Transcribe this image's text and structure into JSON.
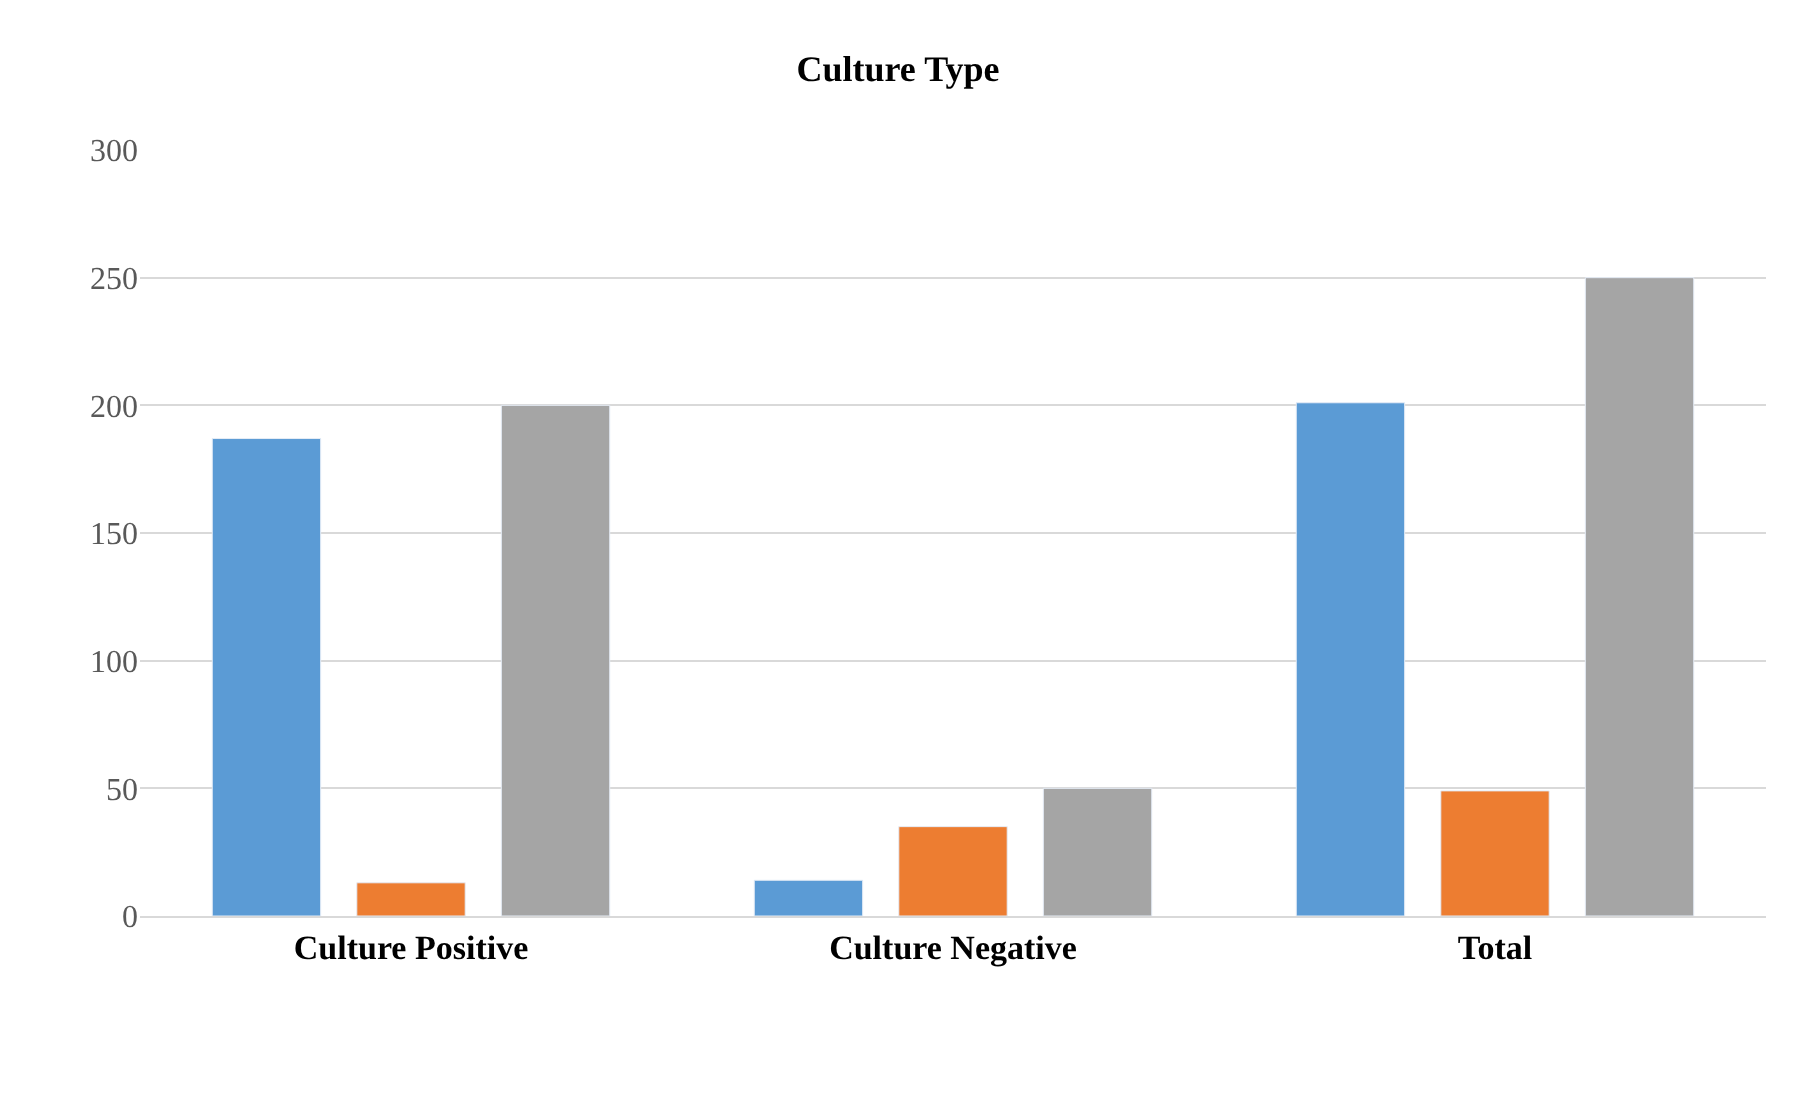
{
  "chart_data": {
    "type": "bar",
    "title": "Culture Type",
    "categories": [
      "Culture Positive",
      "Culture Negative",
      "Total"
    ],
    "series": [
      {
        "color": "#5b9bd5",
        "values": [
          187,
          14,
          201
        ]
      },
      {
        "color": "#ed7d31",
        "values": [
          13,
          35,
          49
        ]
      },
      {
        "color": "#a5a5a5",
        "values": [
          200,
          50,
          250
        ]
      }
    ],
    "ylim": [
      0,
      300
    ],
    "yticks": [
      0,
      50,
      100,
      150,
      200,
      250,
      300
    ],
    "grid": "y"
  }
}
